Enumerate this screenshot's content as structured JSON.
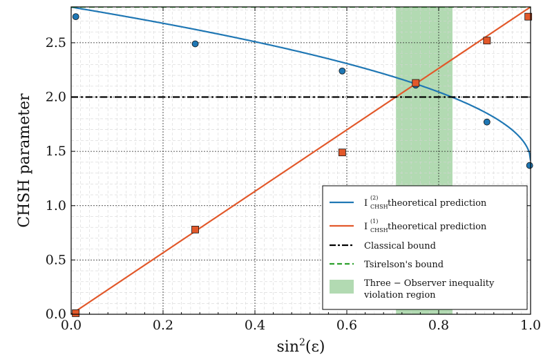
{
  "chart_data": {
    "type": "line",
    "xlabel": "sin",
    "xlabel_sup": "2",
    "xlabel_arg": "(ε)",
    "ylabel": "CHSH parameter",
    "xlim": [
      0.0,
      1.0
    ],
    "ylim": [
      0.0,
      2.83
    ],
    "xticks": [
      0.0,
      0.2,
      0.4,
      0.6,
      0.8,
      1.0
    ],
    "xtick_labels": [
      "0.0",
      "0.2",
      "0.4",
      "0.6",
      "0.8",
      "1.0"
    ],
    "yticks": [
      0.0,
      0.5,
      1.0,
      1.5,
      2.0,
      2.5
    ],
    "ytick_labels": [
      "0.0",
      "0.5",
      "1.0",
      "1.5",
      "2.0",
      "2.5"
    ],
    "grid": true,
    "legend_position": "bottom-right",
    "series": [
      {
        "label_main": "I",
        "label_sup": "(2)",
        "label_sub": "CHSH",
        "label_rest": " theoretical prediction",
        "kind": "curve",
        "color": "#1f77b4",
        "formula": "2*sqrt(2)*sqrt(1 - x^2)... sampled",
        "x": [
          0.0,
          0.05,
          0.1,
          0.15,
          0.2,
          0.25,
          0.3,
          0.35,
          0.4,
          0.45,
          0.5,
          0.55,
          0.6,
          0.65,
          0.7,
          0.75,
          0.8,
          0.85,
          0.9,
          0.93,
          0.96,
          0.98,
          0.99,
          1.0
        ],
        "y": [
          2.83,
          2.82,
          2.8,
          2.77,
          2.73,
          2.69,
          2.64,
          2.58,
          2.51,
          2.44,
          2.36,
          2.28,
          2.2,
          2.12,
          2.04,
          2.13,
          2.03,
          1.96,
          1.86,
          1.78,
          1.67,
          1.57,
          1.5,
          1.41
        ]
      },
      {
        "label_main": "I",
        "label_sup": "(1)",
        "label_sub": "CHSH",
        "label_rest": " theoretical prediction",
        "kind": "line",
        "color": "#e2582a",
        "x": [
          0.0,
          1.0
        ],
        "y": [
          0.0,
          2.83
        ]
      },
      {
        "label_main": "Classical bound",
        "kind": "hline",
        "style": "dashdot",
        "color": "#000000",
        "y": 2.0
      },
      {
        "label_main": "Tsirelson's bound",
        "kind": "hline",
        "style": "dashed",
        "color": "#2ca02c",
        "y": 2.83
      }
    ],
    "shaded_region": {
      "label_line1": "Three − Observer inequality",
      "label_line2": "violation region",
      "color": "#7fc27f",
      "x_start": 0.707,
      "x_end": 0.83
    },
    "points": [
      {
        "marker": "circle",
        "color": "#1f77b4",
        "x": [
          0.01,
          0.27,
          0.59,
          0.75,
          0.905,
          0.998
        ],
        "y": [
          2.74,
          2.49,
          2.24,
          2.11,
          1.77,
          1.37
        ]
      },
      {
        "marker": "square",
        "color": "#e2582a",
        "x": [
          0.01,
          0.27,
          0.59,
          0.75,
          0.905,
          0.995
        ],
        "y": [
          0.01,
          0.78,
          1.49,
          2.13,
          2.52,
          2.74
        ]
      }
    ]
  }
}
